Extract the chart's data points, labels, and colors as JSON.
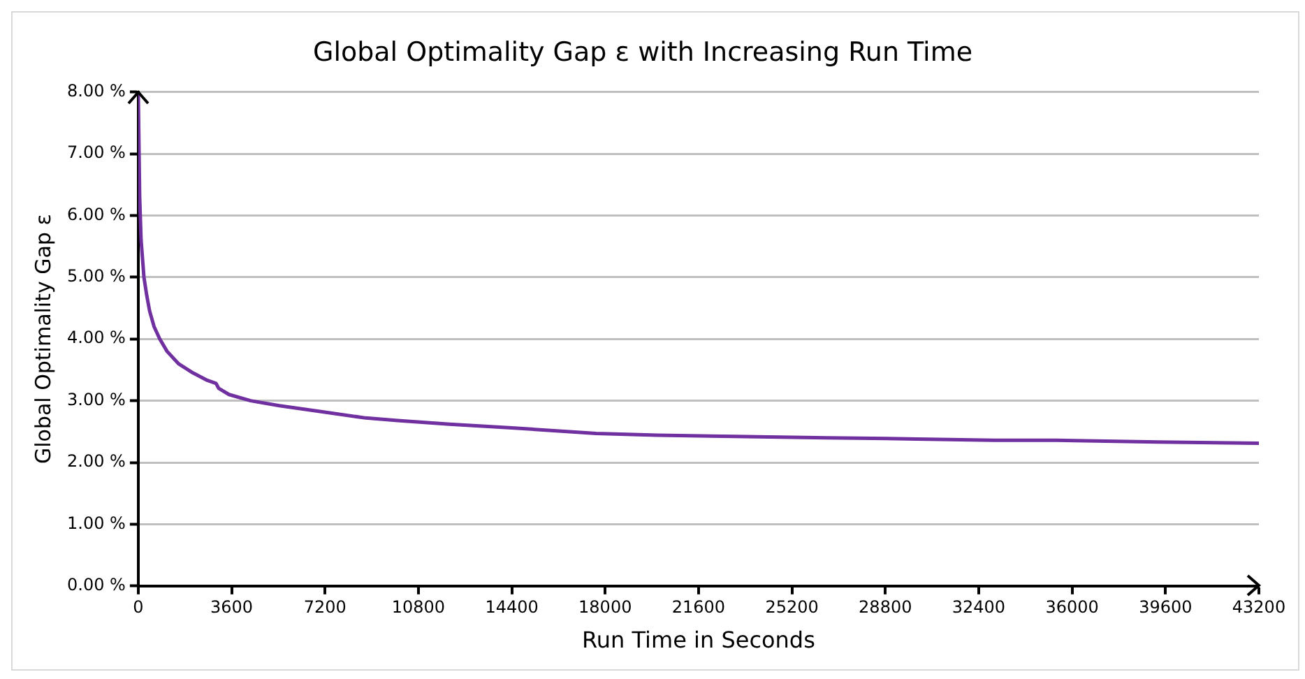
{
  "chart_data": {
    "type": "line",
    "title": "Global Optimality Gap ε with Increasing Run Time",
    "xlabel": "Run Time in Seconds",
    "ylabel": "Global Optimality Gap ε",
    "series": [
      {
        "color": "#7030a0",
        "x": [
          0,
          55,
          110,
          220,
          330,
          440,
          610,
          830,
          1110,
          1550,
          2110,
          2660,
          3000,
          3100,
          3500,
          4330,
          5440,
          7100,
          8770,
          10000,
          12000,
          14400,
          17650,
          20000,
          23000,
          26530,
          30000,
          33000,
          35400,
          39300,
          43200
        ],
        "values": [
          8.0,
          6.3,
          5.6,
          5.0,
          4.7,
          4.45,
          4.2,
          4.0,
          3.8,
          3.6,
          3.45,
          3.33,
          3.28,
          3.2,
          3.1,
          3.0,
          2.92,
          2.82,
          2.72,
          2.68,
          2.62,
          2.56,
          2.47,
          2.44,
          2.42,
          2.4,
          2.38,
          2.36,
          2.36,
          2.33,
          2.31
        ]
      }
    ],
    "xlim": [
      0,
      43200
    ],
    "xticks": [
      0,
      3600,
      7200,
      10800,
      14400,
      18000,
      21600,
      25200,
      28800,
      32400,
      36000,
      39600,
      43200
    ],
    "ylim": [
      0,
      8
    ],
    "yticks": [
      {
        "value": 0,
        "label": "0.00 %"
      },
      {
        "value": 1,
        "label": "1.00 %"
      },
      {
        "value": 2,
        "label": "2.00 %"
      },
      {
        "value": 3,
        "label": "3.00 %"
      },
      {
        "value": 4,
        "label": "4.00 %"
      },
      {
        "value": 5,
        "label": "5.00 %"
      },
      {
        "value": 6,
        "label": "6.00 %"
      },
      {
        "value": 7,
        "label": "7.00 %"
      },
      {
        "value": 8,
        "label": "8.00 %"
      }
    ],
    "grid": "y",
    "legend": false,
    "marker": "none",
    "line_style": "solid"
  }
}
